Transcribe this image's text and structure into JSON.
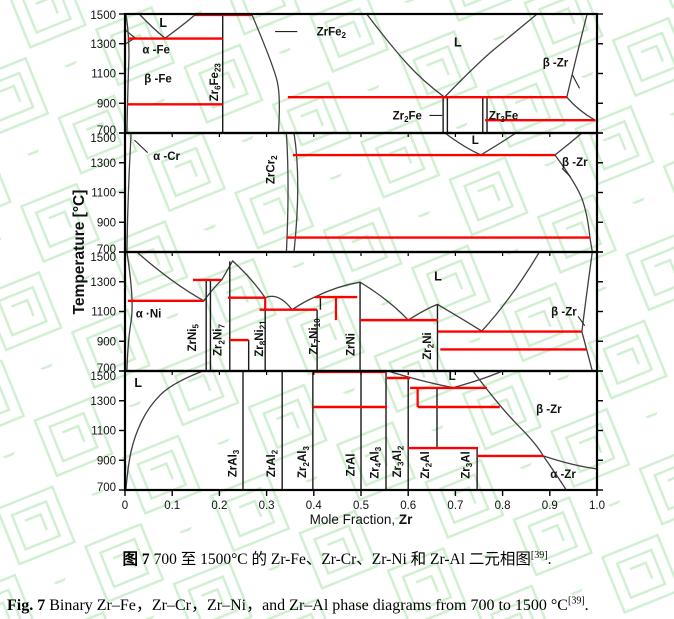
{
  "colors": {
    "isotherm": "#fe0000",
    "curve": "#3f3f3f",
    "compound_line": "#1a1a1a",
    "border": "#000000",
    "watermark": "#a9e2a9",
    "text": "#111111"
  },
  "axes": {
    "y_label": "Temperature [°C]",
    "x_label": "Mole Fraction,",
    "x_label_bold": " Zr",
    "y_ticks": [
      1500,
      1300,
      1100,
      900,
      700
    ],
    "x_ticks": [
      "0",
      "0.1",
      "0.2",
      "0.3",
      "0.4",
      "0.5",
      "0.6",
      "0.7",
      "0.8",
      "0.9",
      "1.0"
    ],
    "x_range": [
      0,
      1
    ],
    "y_range_per_panel": [
      700,
      1500
    ]
  },
  "chart_data": {
    "type": "line",
    "subtype": "binary-phase-diagrams",
    "title": "Binary Zr-Fe, Zr-Cr, Zr-Ni and Zr-Al phase diagrams, 700-1500 °C",
    "xlabel": "Mole Fraction, Zr",
    "ylabel": "Temperature [°C]",
    "xlim": [
      0,
      1
    ],
    "ylim_each_panel": [
      700,
      1500
    ],
    "grid": false,
    "panels": [
      {
        "system": "Zr-Fe",
        "phase_labels": [
          {
            "t": "L",
            "x": 0.081,
            "T": 1440,
            "fs": 12.5
          },
          {
            "t": "α -Fe",
            "x": 0.066,
            "T": 1262
          },
          {
            "t": "β -Fe",
            "x": 0.07,
            "T": 1068
          },
          {
            "t": "Zr|6|Fe|23|",
            "x": 0.197,
            "T": 1068,
            "rot": 1
          },
          {
            "t": "ZrFe|2|",
            "x": 0.437,
            "T": 1382,
            "lead": [
              0.318,
              1382,
              0.365,
              1382
            ]
          },
          {
            "t": "L",
            "x": 0.705,
            "T": 1310,
            "fs": 12.5
          },
          {
            "t": "β -Zr",
            "x": 0.912,
            "T": 1175,
            "lead": [
              0.948,
              1090,
              0.963,
              1000
            ]
          },
          {
            "t": "Zr|2|Fe",
            "x": 0.598,
            "T": 818,
            "lead": [
              0.645,
              818,
              0.672,
              818
            ]
          },
          {
            "t": "Zr|3|Fe",
            "x": 0.802,
            "T": 818
          }
        ],
        "compound_lines": [
          [
            0.207,
            700,
            1500
          ],
          [
            0.674,
            700,
            941
          ],
          [
            0.683,
            700,
            941
          ],
          [
            0.758,
            700,
            941
          ],
          [
            0.767,
            700,
            941
          ]
        ],
        "isotherms": [
          [
            0.006,
            0.207,
            1335
          ],
          [
            0.148,
            0.269,
            1494
          ],
          [
            0.005,
            0.207,
            893
          ],
          [
            0.345,
            0.936,
            941
          ],
          [
            0.763,
            0.996,
            786
          ]
        ],
        "red_verticals": [],
        "curves": [
          [
            [
              0.002,
              1500
            ],
            [
              0.01,
              1337
            ],
            [
              0.006,
              1000
            ],
            [
              0.004,
              700
            ]
          ],
          [
            [
              0.0,
              1394
            ],
            [
              0.022,
              1337
            ]
          ],
          [
            [
              0.0,
              1296
            ],
            [
              0.018,
              1333
            ]
          ],
          [
            [
              0.03,
              1500
            ],
            [
              0.06,
              1400
            ],
            [
              0.085,
              1337
            ]
          ],
          [
            [
              0.085,
              1337
            ],
            [
              0.125,
              1430
            ],
            [
              0.148,
              1494
            ]
          ],
          [
            [
              0.269,
              1494
            ],
            [
              0.315,
              1150
            ],
            [
              0.33,
              941
            ],
            [
              0.325,
              700
            ]
          ],
          [
            [
              0.512,
              1500
            ],
            [
              0.56,
              1300
            ],
            [
              0.63,
              1050
            ],
            [
              0.677,
              941
            ]
          ],
          [
            [
              0.677,
              941
            ],
            [
              0.75,
              1180
            ],
            [
              0.82,
              1360
            ],
            [
              0.873,
              1500
            ]
          ],
          [
            [
              0.979,
              1500
            ],
            [
              0.955,
              1200
            ],
            [
              0.936,
              941
            ]
          ],
          [
            [
              0.936,
              941
            ],
            [
              0.96,
              850
            ],
            [
              0.996,
              786
            ]
          ]
        ]
      },
      {
        "system": "Zr-Cr",
        "phase_labels": [
          {
            "t": "α -Cr",
            "x": 0.088,
            "T": 1345,
            "lead": [
              0.048,
              1368,
              0.02,
              1452
            ]
          },
          {
            "t": "ZrCr|2|",
            "x": 0.317,
            "T": 1280,
            "rot": 1
          },
          {
            "t": "L",
            "x": 0.742,
            "T": 1452,
            "fs": 11.5
          },
          {
            "t": "β -Zr",
            "x": 0.953,
            "T": 1305,
            "lead": [
              0.926,
              1262,
              0.944,
              1205
            ]
          }
        ],
        "compound_lines": [],
        "isotherms": [
          [
            0.356,
            0.911,
            1352
          ],
          [
            0.342,
            0.985,
            797
          ]
        ],
        "red_verticals": [],
        "curves": [
          [
            [
              0.013,
              1500
            ],
            [
              0.006,
              1100
            ],
            [
              0.004,
              700
            ]
          ],
          [
            [
              0.342,
              1500
            ],
            [
              0.349,
              1150
            ],
            [
              0.342,
              700
            ]
          ],
          [
            [
              0.358,
              1500
            ],
            [
              0.374,
              1180
            ],
            [
              0.358,
              700
            ]
          ],
          [
            [
              0.678,
              1500
            ],
            [
              0.72,
              1400
            ],
            [
              0.754,
              1353
            ]
          ],
          [
            [
              0.754,
              1353
            ],
            [
              0.8,
              1440
            ],
            [
              0.828,
              1500
            ]
          ],
          [
            [
              0.911,
              1352
            ],
            [
              0.94,
              1425
            ],
            [
              0.968,
              1500
            ]
          ],
          [
            [
              0.911,
              1352
            ],
            [
              0.958,
              1150
            ],
            [
              0.98,
              950
            ],
            [
              0.985,
              797
            ]
          ],
          [
            [
              0.985,
              797
            ],
            [
              0.99,
              700
            ]
          ]
        ]
      },
      {
        "system": "Zr-Ni",
        "phase_labels": [
          {
            "t": "α ·Ni",
            "x": 0.05,
            "T": 1088
          },
          {
            "t": "ZrNi|5|",
            "x": 0.15,
            "T": 950,
            "rot": 1
          },
          {
            "t": "Zr|2|Ni|7|",
            "x": 0.205,
            "T": 935,
            "rot": 1
          },
          {
            "t": "Zr|8|Ni|21|",
            "x": 0.292,
            "T": 945,
            "rot": 1
          },
          {
            "t": "Zr|7|Ni|10|",
            "x": 0.408,
            "T": 958,
            "rot": 1
          },
          {
            "t": "ZrNi",
            "x": 0.486,
            "T": 905,
            "rot": 1
          },
          {
            "t": "Zr|2|Ni",
            "x": 0.648,
            "T": 895,
            "rot": 1
          },
          {
            "t": "L",
            "x": 0.663,
            "T": 1335,
            "fs": 12.5
          },
          {
            "t": "β -Zr",
            "x": 0.93,
            "T": 1100,
            "lead": [
              0.96,
              1068,
              0.974,
              1005
            ]
          }
        ],
        "compound_lines": [
          [
            0.172,
            700,
            1312
          ],
          [
            0.181,
            700,
            1312
          ],
          [
            0.222,
            700,
            1437
          ],
          [
            0.262,
            700,
            908
          ],
          [
            0.297,
            700,
            1193
          ],
          [
            0.407,
            700,
            1112
          ],
          [
            0.414,
            1112,
            1197
          ],
          [
            0.498,
            700,
            1295
          ],
          [
            0.662,
            700,
            1148
          ]
        ],
        "isotherms": [
          [
            0.006,
            0.167,
            1172
          ],
          [
            0.144,
            0.205,
            1312
          ],
          [
            0.218,
            0.297,
            1193
          ],
          [
            0.285,
            0.407,
            1112
          ],
          [
            0.402,
            0.492,
            1197
          ],
          [
            0.222,
            0.262,
            908
          ],
          [
            0.498,
            0.663,
            1042
          ],
          [
            0.663,
            0.968,
            965
          ],
          [
            0.668,
            0.978,
            845
          ]
        ],
        "red_verticals": [
          [
            0.297,
            1193,
            1112
          ],
          [
            0.447,
            1197,
            1042
          ]
        ],
        "curves": [
          [
            [
              0.004,
              1500
            ],
            [
              0.02,
              1172
            ],
            [
              0.006,
              900
            ],
            [
              0.004,
              700
            ]
          ],
          [
            [
              0.025,
              1500
            ],
            [
              0.1,
              1290
            ],
            [
              0.167,
              1172
            ]
          ],
          [
            [
              0.167,
              1172
            ],
            [
              0.19,
              1268
            ],
            [
              0.205,
              1313
            ]
          ],
          [
            [
              0.205,
              1313
            ],
            [
              0.228,
              1440
            ]
          ],
          [
            [
              0.228,
              1440
            ],
            [
              0.27,
              1318
            ],
            [
              0.297,
              1193
            ]
          ],
          [
            [
              0.297,
              1193
            ],
            [
              0.325,
              1232
            ],
            [
              0.354,
              1112
            ]
          ],
          [
            [
              0.354,
              1112
            ],
            [
              0.38,
              1168
            ],
            [
              0.402,
              1197
            ]
          ],
          [
            [
              0.402,
              1197
            ],
            [
              0.45,
              1272
            ],
            [
              0.498,
              1297
            ]
          ],
          [
            [
              0.498,
              1297
            ],
            [
              0.56,
              1178
            ],
            [
              0.6,
              1042
            ]
          ],
          [
            [
              0.6,
              1042
            ],
            [
              0.638,
              1118
            ],
            [
              0.662,
              1148
            ]
          ],
          [
            [
              0.662,
              1148
            ],
            [
              0.72,
              1040
            ],
            [
              0.756,
              968
            ]
          ],
          [
            [
              0.756,
              968
            ],
            [
              0.82,
              1190
            ],
            [
              0.878,
              1500
            ]
          ],
          [
            [
              0.99,
              1500
            ],
            [
              0.975,
              1150
            ],
            [
              0.968,
              965
            ]
          ],
          [
            [
              0.968,
              965
            ],
            [
              0.978,
              845
            ]
          ],
          [
            [
              0.978,
              845
            ],
            [
              0.99,
              700
            ]
          ]
        ]
      },
      {
        "system": "Zr-Al",
        "phase_labels": [
          {
            "t": "L",
            "x": 0.028,
            "T": 1420,
            "fs": 12.5
          },
          {
            "t": "L",
            "x": 0.693,
            "T": 1468,
            "fs": 11.5
          },
          {
            "t": "ZrAl|3|",
            "x": 0.236,
            "T": 905,
            "rot": 1
          },
          {
            "t": "ZrAl|2|",
            "x": 0.318,
            "T": 905,
            "rot": 1
          },
          {
            "t": "Zr|2|Al|3|",
            "x": 0.384,
            "T": 915,
            "rot": 1
          },
          {
            "t": "ZrAl",
            "x": 0.486,
            "T": 895,
            "rot": 1
          },
          {
            "t": "Zr|4|Al|3|",
            "x": 0.537,
            "T": 910,
            "rot": 1
          },
          {
            "t": "Zr|3|Al|2|",
            "x": 0.585,
            "T": 918,
            "rot": 1
          },
          {
            "t": "Zr|2|Al",
            "x": 0.644,
            "T": 895,
            "rot": 1
          },
          {
            "t": "Zr|3|Al",
            "x": 0.73,
            "T": 895,
            "rot": 1
          },
          {
            "t": "β -Zr",
            "x": 0.898,
            "T": 1245
          },
          {
            "t": "α -Zr",
            "x": 0.928,
            "T": 808
          }
        ],
        "compound_lines": [
          [
            0.25,
            700,
            1500
          ],
          [
            0.333,
            700,
            1500
          ],
          [
            0.398,
            700,
            1494
          ],
          [
            0.5,
            700,
            1500
          ],
          [
            0.553,
            700,
            1494
          ],
          [
            0.6,
            700,
            1453
          ],
          [
            0.661,
            982,
            1386
          ],
          [
            0.746,
            700,
            982
          ]
        ],
        "isotherms": [
          [
            0.398,
            0.555,
            1494
          ],
          [
            0.555,
            0.604,
            1453
          ],
          [
            0.604,
            0.767,
            1386
          ],
          [
            0.398,
            0.555,
            1258
          ],
          [
            0.62,
            0.794,
            1258
          ],
          [
            0.6,
            0.748,
            982
          ],
          [
            0.746,
            0.886,
            929
          ]
        ],
        "red_verticals": [
          [
            0.62,
            1386,
            1258
          ]
        ],
        "curves": [
          [
            [
              0.002,
              700
            ],
            [
              0.006,
              860
            ],
            [
              0.02,
              1060
            ],
            [
              0.05,
              1260
            ],
            [
              0.1,
              1420
            ],
            [
              0.165,
              1500
            ]
          ],
          [
            [
              0.557,
              1500
            ],
            [
              0.63,
              1428
            ],
            [
              0.695,
              1388
            ]
          ],
          [
            [
              0.695,
              1388
            ],
            [
              0.76,
              1445
            ],
            [
              0.8,
              1500
            ]
          ],
          [
            [
              0.737,
              1500
            ],
            [
              0.794,
              1258
            ],
            [
              0.873,
              1005
            ],
            [
              0.886,
              929
            ]
          ],
          [
            [
              0.886,
              929
            ],
            [
              0.95,
              862
            ],
            [
              1.0,
              842
            ]
          ],
          [
            [
              0.886,
              929
            ],
            [
              0.915,
              798
            ],
            [
              0.935,
              700
            ]
          ]
        ]
      }
    ]
  },
  "captions": {
    "zh": {
      "prefix": "图 7",
      "body": " 700 至 1500°C 的 Zr-Fe、Zr-Cr、Zr-Ni 和 Zr-Al 二元相图",
      "ref": "[39]",
      "period": "."
    },
    "en": {
      "prefix": "Fig. 7",
      "body": " Binary Zr–Fe，Zr–Cr，Zr–Ni，and Zr–Al phase diagrams from 700 to 1500 °C",
      "ref": "[39]",
      "period": "."
    }
  }
}
